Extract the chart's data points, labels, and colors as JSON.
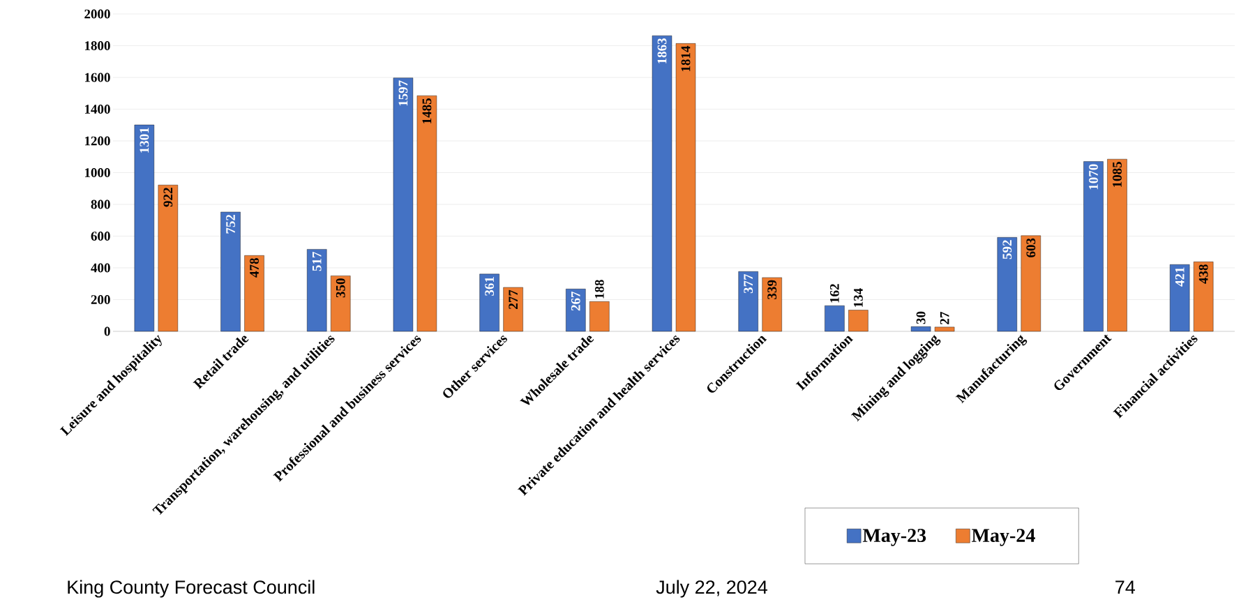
{
  "chart_data": {
    "type": "bar",
    "categories": [
      "Leisure and hospitality",
      "Retail trade",
      "Transportation, warehousing, and utilities",
      "Professional and business services",
      "Other services",
      "Wholesale trade",
      "Private education and health services",
      "Construction",
      "Information",
      "Mining and logging",
      "Manufacturing",
      "Government",
      "Financial activities"
    ],
    "series": [
      {
        "name": "May-23",
        "color": "#4472c4",
        "values": [
          1301,
          752,
          517,
          1597,
          361,
          267,
          1863,
          377,
          162,
          30,
          592,
          1070,
          421
        ]
      },
      {
        "name": "May-24",
        "color": "#ed7d31",
        "values": [
          922,
          478,
          350,
          1485,
          277,
          188,
          1814,
          339,
          134,
          27,
          603,
          1085,
          438
        ]
      }
    ],
    "ylim": [
      0,
      2000
    ],
    "yticks": [
      0,
      200,
      400,
      600,
      800,
      1000,
      1200,
      1400,
      1600,
      1800,
      2000
    ],
    "grid": "y",
    "legend": "bottom right",
    "data_labels": true,
    "annotations": [
      "King County Forecast Council",
      "July 22, 2024",
      "74"
    ]
  }
}
